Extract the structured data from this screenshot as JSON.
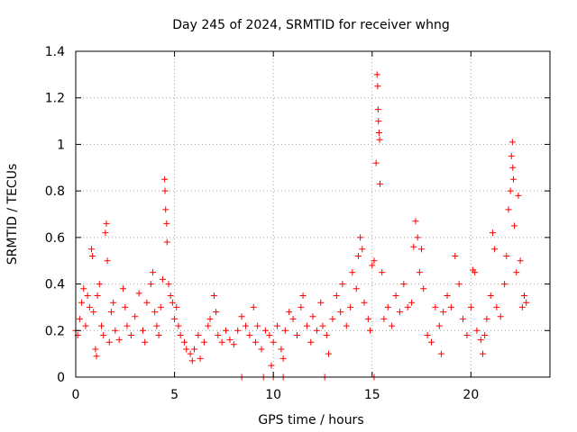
{
  "chart_data": {
    "type": "scatter",
    "title": "Day 245 of 2024, SRMTID for receiver whng",
    "xlabel": "GPS time / hours",
    "ylabel": "SRMTID / TECUs",
    "xlim": [
      0,
      24
    ],
    "ylim": [
      0,
      1.4
    ],
    "xticks": [
      0,
      5,
      10,
      15,
      20
    ],
    "xtick_labels": [
      "0",
      "5",
      "10",
      "15",
      "20"
    ],
    "yticks": [
      0,
      0.2,
      0.4,
      0.6,
      0.8,
      1.0,
      1.2,
      1.4
    ],
    "ytick_labels": [
      "0",
      "0.2",
      "0.4",
      "0.6",
      "0.8",
      "1",
      "1.2",
      "1.4"
    ],
    "grid": true,
    "marker": "plus",
    "color": "#ff0000",
    "series": [
      {
        "name": "SRMTID",
        "points": [
          [
            0.0,
            0.2
          ],
          [
            0.1,
            0.18
          ],
          [
            0.2,
            0.25
          ],
          [
            0.3,
            0.32
          ],
          [
            0.4,
            0.38
          ],
          [
            0.5,
            0.22
          ],
          [
            0.6,
            0.35
          ],
          [
            0.7,
            0.3
          ],
          [
            0.8,
            0.55
          ],
          [
            0.85,
            0.52
          ],
          [
            0.9,
            0.28
          ],
          [
            1.0,
            0.12
          ],
          [
            1.05,
            0.09
          ],
          [
            1.1,
            0.35
          ],
          [
            1.2,
            0.4
          ],
          [
            1.3,
            0.22
          ],
          [
            1.4,
            0.18
          ],
          [
            1.5,
            0.62
          ],
          [
            1.55,
            0.66
          ],
          [
            1.6,
            0.5
          ],
          [
            1.7,
            0.15
          ],
          [
            1.8,
            0.28
          ],
          [
            1.9,
            0.32
          ],
          [
            2.0,
            0.2
          ],
          [
            2.2,
            0.16
          ],
          [
            2.4,
            0.38
          ],
          [
            2.5,
            0.3
          ],
          [
            2.6,
            0.22
          ],
          [
            2.8,
            0.18
          ],
          [
            3.0,
            0.26
          ],
          [
            3.2,
            0.36
          ],
          [
            3.4,
            0.2
          ],
          [
            3.5,
            0.15
          ],
          [
            3.6,
            0.32
          ],
          [
            3.8,
            0.4
          ],
          [
            3.9,
            0.45
          ],
          [
            4.0,
            0.28
          ],
          [
            4.1,
            0.22
          ],
          [
            4.2,
            0.18
          ],
          [
            4.3,
            0.3
          ],
          [
            4.4,
            0.42
          ],
          [
            4.5,
            0.85
          ],
          [
            4.52,
            0.8
          ],
          [
            4.55,
            0.72
          ],
          [
            4.6,
            0.66
          ],
          [
            4.62,
            0.58
          ],
          [
            4.7,
            0.4
          ],
          [
            4.8,
            0.35
          ],
          [
            4.9,
            0.32
          ],
          [
            5.0,
            0.25
          ],
          [
            5.1,
            0.3
          ],
          [
            5.2,
            0.22
          ],
          [
            5.3,
            0.18
          ],
          [
            5.5,
            0.15
          ],
          [
            5.6,
            0.12
          ],
          [
            5.8,
            0.1
          ],
          [
            5.9,
            0.07
          ],
          [
            6.0,
            0.12
          ],
          [
            6.2,
            0.18
          ],
          [
            6.3,
            0.08
          ],
          [
            6.5,
            0.15
          ],
          [
            6.7,
            0.22
          ],
          [
            6.8,
            0.25
          ],
          [
            7.0,
            0.35
          ],
          [
            7.1,
            0.28
          ],
          [
            7.2,
            0.18
          ],
          [
            7.4,
            0.15
          ],
          [
            7.6,
            0.2
          ],
          [
            7.8,
            0.16
          ],
          [
            8.0,
            0.14
          ],
          [
            8.2,
            0.2
          ],
          [
            8.4,
            0.26
          ],
          [
            8.6,
            0.22
          ],
          [
            8.8,
            0.18
          ],
          [
            9.0,
            0.3
          ],
          [
            9.1,
            0.15
          ],
          [
            9.2,
            0.22
          ],
          [
            9.4,
            0.12
          ],
          [
            9.6,
            0.2
          ],
          [
            9.8,
            0.18
          ],
          [
            9.9,
            0.05
          ],
          [
            10.0,
            0.15
          ],
          [
            10.2,
            0.22
          ],
          [
            10.4,
            0.12
          ],
          [
            10.5,
            0.08
          ],
          [
            10.6,
            0.2
          ],
          [
            10.8,
            0.28
          ],
          [
            11.0,
            0.25
          ],
          [
            11.2,
            0.18
          ],
          [
            11.4,
            0.3
          ],
          [
            11.5,
            0.35
          ],
          [
            11.7,
            0.22
          ],
          [
            11.9,
            0.15
          ],
          [
            12.0,
            0.26
          ],
          [
            12.2,
            0.2
          ],
          [
            12.4,
            0.32
          ],
          [
            12.5,
            0.22
          ],
          [
            12.7,
            0.18
          ],
          [
            12.8,
            0.1
          ],
          [
            13.0,
            0.25
          ],
          [
            13.2,
            0.35
          ],
          [
            13.4,
            0.28
          ],
          [
            13.5,
            0.4
          ],
          [
            13.7,
            0.22
          ],
          [
            13.9,
            0.3
          ],
          [
            14.0,
            0.45
          ],
          [
            14.2,
            0.38
          ],
          [
            14.3,
            0.52
          ],
          [
            14.4,
            0.6
          ],
          [
            14.5,
            0.55
          ],
          [
            14.6,
            0.32
          ],
          [
            14.8,
            0.25
          ],
          [
            14.9,
            0.2
          ],
          [
            15.0,
            0.48
          ],
          [
            15.1,
            0.5
          ],
          [
            15.2,
            0.92
          ],
          [
            15.25,
            1.3
          ],
          [
            15.28,
            1.25
          ],
          [
            15.3,
            1.15
          ],
          [
            15.32,
            1.1
          ],
          [
            15.35,
            1.05
          ],
          [
            15.38,
            1.02
          ],
          [
            15.4,
            0.83
          ],
          [
            15.5,
            0.45
          ],
          [
            15.6,
            0.25
          ],
          [
            15.8,
            0.3
          ],
          [
            16.0,
            0.22
          ],
          [
            16.2,
            0.35
          ],
          [
            16.4,
            0.28
          ],
          [
            16.6,
            0.4
          ],
          [
            16.8,
            0.3
          ],
          [
            17.0,
            0.32
          ],
          [
            17.1,
            0.56
          ],
          [
            17.2,
            0.67
          ],
          [
            17.3,
            0.6
          ],
          [
            17.4,
            0.45
          ],
          [
            17.5,
            0.55
          ],
          [
            17.6,
            0.38
          ],
          [
            17.8,
            0.18
          ],
          [
            18.0,
            0.15
          ],
          [
            18.2,
            0.3
          ],
          [
            18.4,
            0.22
          ],
          [
            18.5,
            0.1
          ],
          [
            18.6,
            0.28
          ],
          [
            18.8,
            0.35
          ],
          [
            19.0,
            0.3
          ],
          [
            19.2,
            0.52
          ],
          [
            19.4,
            0.4
          ],
          [
            19.6,
            0.25
          ],
          [
            19.8,
            0.18
          ],
          [
            20.0,
            0.3
          ],
          [
            20.1,
            0.46
          ],
          [
            20.2,
            0.45
          ],
          [
            20.3,
            0.2
          ],
          [
            20.5,
            0.16
          ],
          [
            20.6,
            0.1
          ],
          [
            20.7,
            0.18
          ],
          [
            20.8,
            0.25
          ],
          [
            21.0,
            0.35
          ],
          [
            21.1,
            0.62
          ],
          [
            21.2,
            0.55
          ],
          [
            21.3,
            0.3
          ],
          [
            21.5,
            0.26
          ],
          [
            21.7,
            0.4
          ],
          [
            21.8,
            0.52
          ],
          [
            21.9,
            0.72
          ],
          [
            22.0,
            0.8
          ],
          [
            22.05,
            0.95
          ],
          [
            22.1,
            1.01
          ],
          [
            22.12,
            0.9
          ],
          [
            22.15,
            0.85
          ],
          [
            22.2,
            0.65
          ],
          [
            22.3,
            0.45
          ],
          [
            22.4,
            0.78
          ],
          [
            22.5,
            0.5
          ],
          [
            22.6,
            0.3
          ],
          [
            22.7,
            0.35
          ],
          [
            22.8,
            0.32
          ],
          [
            8.4,
            0.0
          ],
          [
            9.5,
            0.0
          ],
          [
            10.0,
            0.0
          ],
          [
            10.5,
            0.0
          ],
          [
            12.6,
            0.0
          ],
          [
            15.1,
            0.0
          ]
        ]
      }
    ]
  }
}
